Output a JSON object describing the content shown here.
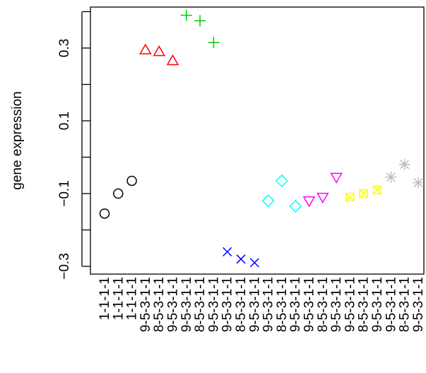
{
  "chart_data": {
    "type": "scatter",
    "title": "",
    "xlabel": "",
    "ylabel": "gene expression",
    "ylim": [
      -0.31,
      0.42
    ],
    "yticks": [
      -0.3,
      -0.1,
      0.1,
      0.3
    ],
    "ytick_labels": [
      "−0.3",
      "−0.1",
      "0.1",
      "0.3"
    ],
    "grid": false,
    "legend": "none",
    "series": [
      {
        "marker": "circle",
        "color": "#000000",
        "x": [
          1,
          2,
          3
        ],
        "y": [
          -0.155,
          -0.1,
          -0.065
        ]
      },
      {
        "marker": "triangle-up",
        "color": "#FF0000",
        "x": [
          4,
          5,
          6
        ],
        "y": [
          0.295,
          0.29,
          0.265
        ]
      },
      {
        "marker": "plus",
        "color": "#00CD00",
        "x": [
          7,
          8,
          9
        ],
        "y": [
          0.39,
          0.375,
          0.315
        ]
      },
      {
        "marker": "x",
        "color": "#0000FF",
        "x": [
          10,
          11,
          12
        ],
        "y": [
          -0.26,
          -0.28,
          -0.29
        ]
      },
      {
        "marker": "diamond",
        "color": "#00FFFF",
        "x": [
          13,
          14,
          15
        ],
        "y": [
          -0.12,
          -0.065,
          -0.135
        ]
      },
      {
        "marker": "triangle-down",
        "color": "#FF00FF",
        "x": [
          16,
          17,
          18
        ],
        "y": [
          -0.12,
          -0.11,
          -0.055
        ]
      },
      {
        "marker": "square-x",
        "color": "#FFFF00",
        "x": [
          19,
          20,
          21
        ],
        "y": [
          -0.11,
          -0.1,
          -0.09
        ]
      },
      {
        "marker": "asterisk",
        "color": "#BEBEBE",
        "x": [
          22,
          23,
          24
        ],
        "y": [
          -0.055,
          -0.02,
          -0.07
        ]
      }
    ],
    "x_categories": [
      "1-1-1-1",
      "1-1-1-1",
      "1-1-1-1",
      "9-5-3-1-1",
      "8-5-3-1-1",
      "9-5-3-1-1",
      "9-5-3-1-1",
      "8-5-3-1-1",
      "9-5-3-1-1",
      "9-5-3-1-1",
      "8-5-3-1-1",
      "9-5-3-1-1",
      "9-5-3-1-1",
      "8-5-3-1-1",
      "9-5-3-1-1",
      "9-5-3-1-1",
      "8-5-3-1-1",
      "9-5-3-1-1",
      "9-5-3-1-1",
      "8-5-3-1-1",
      "9-5-3-1-1",
      "9-5-3-1-1",
      "8-5-3-1-1",
      "9-5-3-1-1"
    ]
  }
}
